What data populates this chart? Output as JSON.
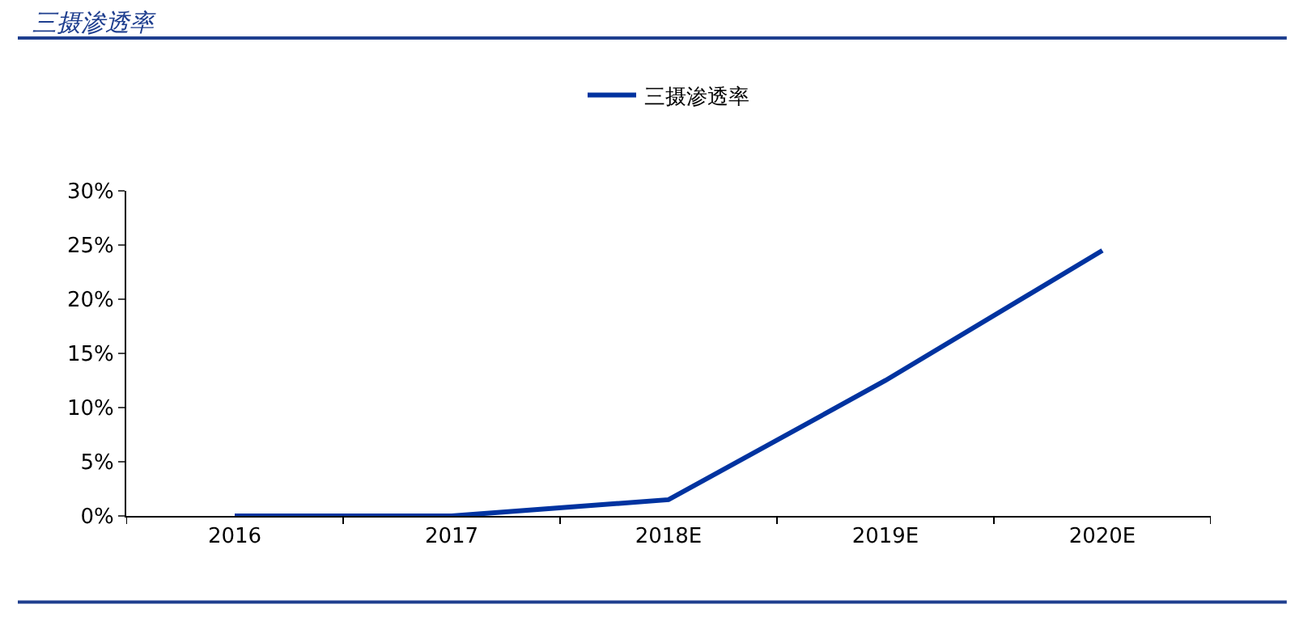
{
  "chart_data": {
    "type": "line",
    "title": "三摄渗透率",
    "categories": [
      "2016",
      "2017",
      "2018E",
      "2019E",
      "2020E"
    ],
    "series": [
      {
        "name": "三摄渗透率",
        "color": "#0033a0",
        "values": [
          0,
          0,
          1.5,
          12.5,
          24.5
        ]
      }
    ],
    "ylim": [
      0,
      30
    ],
    "yticks": [
      {
        "value": 0,
        "label": "0%"
      },
      {
        "value": 5,
        "label": "5%"
      },
      {
        "value": 10,
        "label": "10%"
      },
      {
        "value": 15,
        "label": "15%"
      },
      {
        "value": 20,
        "label": "20%"
      },
      {
        "value": 25,
        "label": "25%"
      },
      {
        "value": 30,
        "label": "30%"
      }
    ],
    "legend": "top",
    "marker": "none",
    "line_style": "solid"
  }
}
